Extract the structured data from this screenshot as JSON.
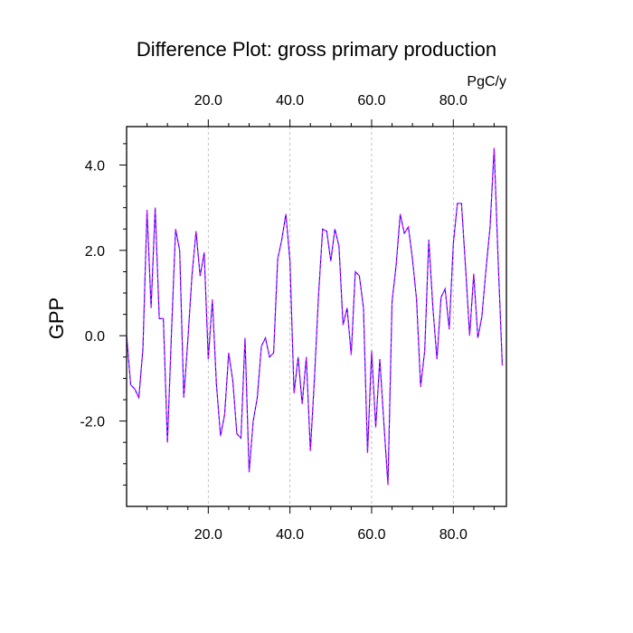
{
  "chart_data": {
    "type": "line",
    "title": "Difference Plot: gross primary production",
    "xlabel": "",
    "ylabel": "GPP",
    "units": "PgC/y",
    "xlim": [
      0,
      93
    ],
    "ylim": [
      -4.0,
      4.9
    ],
    "x_ticks": [
      20,
      40,
      60,
      80
    ],
    "x_tick_labels": [
      "20.0",
      "40.0",
      "60.0",
      "80.0"
    ],
    "y_ticks": [
      -2,
      0,
      2,
      4
    ],
    "y_tick_labels": [
      "-2.0",
      "0.0",
      "2.0",
      "4.0"
    ],
    "grid": "vertical dashed",
    "colors": {
      "bottom_ticks": "#ff0000",
      "top_ticks": "#0000ff",
      "line_a": "#0000ff",
      "line_b": "#ff00ff"
    },
    "series": [
      {
        "values": [
          0.0,
          -1.15,
          -1.25,
          -1.45,
          -0.3,
          2.95,
          0.65,
          3.0,
          0.4,
          0.4,
          -2.5,
          0.1,
          2.5,
          2.0,
          -1.45,
          -0.1,
          1.4,
          2.45,
          1.4,
          1.95,
          -0.55,
          0.85,
          -1.15,
          -2.35,
          -1.85,
          -0.4,
          -1.05,
          -2.3,
          -2.4,
          -0.05,
          -3.2,
          -2.0,
          -1.45,
          -0.25,
          -0.05,
          -0.5,
          -0.4,
          1.8,
          2.25,
          2.85,
          1.75,
          -1.35,
          -0.5,
          -1.6,
          -0.5,
          -2.7,
          -1.0,
          0.95,
          2.5,
          2.45,
          1.75,
          2.5,
          2.1,
          0.25,
          0.65,
          -0.45,
          1.5,
          1.4,
          0.65,
          -2.75,
          -0.35,
          -2.15,
          -0.55,
          -2.05,
          -3.5,
          0.8,
          1.65,
          2.85,
          2.4,
          2.55,
          1.8,
          0.85,
          -1.2,
          -0.35,
          2.25,
          0.65,
          -0.55,
          0.9,
          1.1,
          0.15,
          2.15,
          3.1,
          3.1,
          1.6,
          0.0,
          1.45,
          -0.05,
          0.45,
          1.55,
          2.55,
          4.4,
          1.7,
          -0.7
        ]
      }
    ]
  }
}
